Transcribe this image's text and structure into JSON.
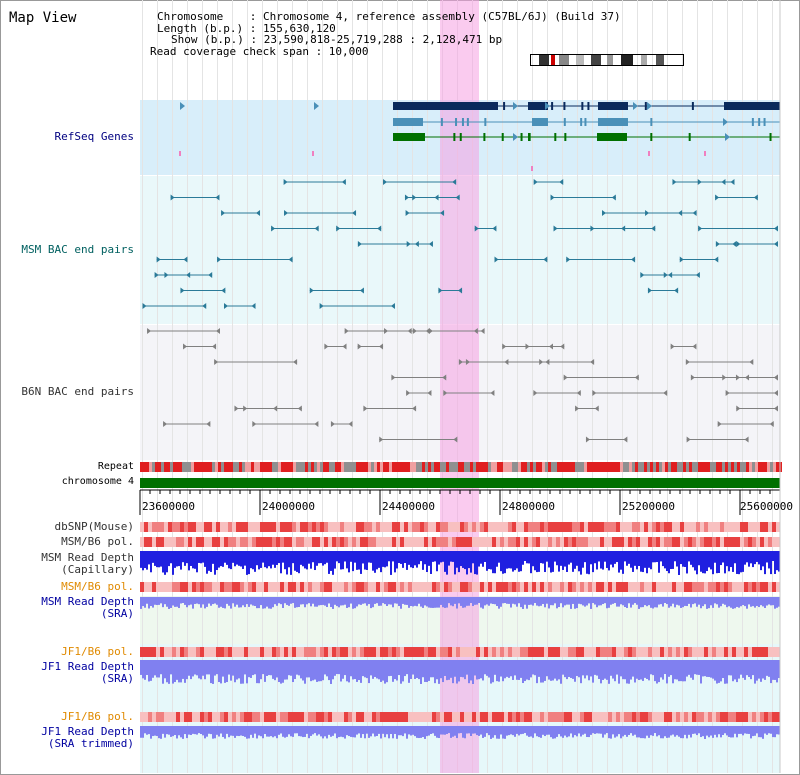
{
  "app": {
    "title": "Map View"
  },
  "info": {
    "chromosome_line": "Chromosome    : Chromosome 4, reference assembly (C57BL/6J) (Build 37)",
    "length_line": "Length (b.p.) : 155,630,120",
    "show_line": "Show (b.p.) : 23,590,818-25,719,288 : 2,128,471 bp",
    "coverage_line": "Read coverage check span : 10,000"
  },
  "tracks": {
    "refseq": "RefSeq Genes",
    "msm_bac": "MSM BAC end pairs",
    "b6n_bac": "B6N BAC end pairs",
    "repeat": "Repeat",
    "chromosome": "chromosome 4",
    "dbsnp": "dbSNP(Mouse)",
    "msm_b6_pol_1": "MSM/B6 pol.",
    "msm_read_depth_cap": "MSM Read Depth\n(Capillary)",
    "msm_b6_pol_2": "MSM/B6 pol.",
    "msm_read_depth_sra": "MSM Read Depth\n(SRA)",
    "jf1_b6_pol_1": "JF1/B6 pol.",
    "jf1_read_depth_sra": "JF1 Read Depth\n(SRA)",
    "jf1_b6_pol_2": "JF1/B6 pol.",
    "jf1_read_depth_trim": "JF1 Read Depth\n(SRA trimmed)"
  },
  "axis": {
    "ticks": [
      "23600000",
      "24000000",
      "24400000",
      "24800000",
      "25200000",
      "25600000"
    ]
  },
  "colors": {
    "refseq_bg": "#d8eefa",
    "bac_bg": "#e9f8fa",
    "highlight": "#f5a0e1",
    "chromosome_bar": "#007000",
    "gene_dark": "#0a2a5c",
    "gene_mid": "#4a90b8",
    "gene_green": "#007000",
    "bac_teal": "#2a7a98",
    "bac_grey": "#808080",
    "snp_red": "#ea4a4a",
    "depth_blue": "#2020e0",
    "depth_light": "#8080f0"
  }
}
